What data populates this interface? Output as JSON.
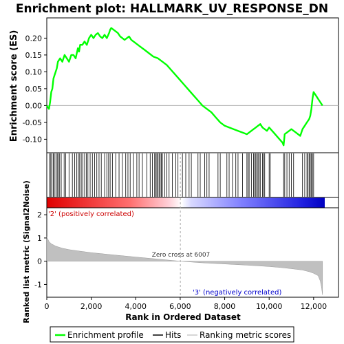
{
  "chart_data": {
    "type": "line",
    "title": "Enrichment plot: HALLMARK_UV_RESPONSE_DN",
    "es_panel": {
      "ylabel": "Enrichment score (ES)",
      "ylim": [
        -0.14,
        0.26
      ],
      "yticks": [
        -0.1,
        -0.05,
        0.0,
        0.05,
        0.1,
        0.15,
        0.2
      ],
      "ytick_labels": [
        "-0.10",
        "-0.05",
        "0.00",
        "0.05",
        "0.10",
        "0.15",
        "0.20"
      ],
      "series": [
        {
          "name": "Enrichment profile",
          "color": "#00ff00",
          "x": [
            0,
            100,
            150,
            200,
            250,
            300,
            350,
            400,
            450,
            500,
            600,
            700,
            800,
            900,
            1000,
            1100,
            1200,
            1300,
            1400,
            1450,
            1500,
            1600,
            1700,
            1800,
            1900,
            2000,
            2100,
            2200,
            2300,
            2400,
            2500,
            2600,
            2700,
            2800,
            2850,
            2900,
            3000,
            3100,
            3200,
            3300,
            3400,
            3500,
            3600,
            3700,
            3800,
            3900,
            4000,
            4200,
            4400,
            4600,
            4800,
            5000,
            5200,
            5400,
            5600,
            5800,
            6000,
            6200,
            6400,
            6600,
            6800,
            7000,
            7200,
            7400,
            7600,
            7800,
            8000,
            8200,
            8400,
            8600,
            8800,
            9000,
            9200,
            9300,
            9400,
            9500,
            9600,
            9700,
            9800,
            9900,
            10000,
            10200,
            10400,
            10600,
            10650,
            10700,
            10800,
            10900,
            11000,
            11100,
            11200,
            11400,
            11500,
            11600,
            11700,
            11800,
            11850,
            11900,
            11950,
            12000,
            12100,
            12200,
            12300,
            12400
          ],
          "y": [
            0.0,
            -0.01,
            0.01,
            0.04,
            0.05,
            0.08,
            0.09,
            0.1,
            0.11,
            0.13,
            0.14,
            0.13,
            0.15,
            0.14,
            0.13,
            0.15,
            0.15,
            0.14,
            0.17,
            0.16,
            0.18,
            0.18,
            0.19,
            0.18,
            0.2,
            0.21,
            0.2,
            0.21,
            0.215,
            0.205,
            0.2,
            0.21,
            0.2,
            0.215,
            0.225,
            0.23,
            0.225,
            0.22,
            0.215,
            0.205,
            0.2,
            0.195,
            0.2,
            0.205,
            0.195,
            0.19,
            0.185,
            0.175,
            0.165,
            0.155,
            0.145,
            0.14,
            0.13,
            0.12,
            0.105,
            0.09,
            0.075,
            0.06,
            0.045,
            0.03,
            0.015,
            0.0,
            -0.01,
            -0.02,
            -0.035,
            -0.05,
            -0.06,
            -0.065,
            -0.07,
            -0.075,
            -0.08,
            -0.085,
            -0.075,
            -0.07,
            -0.065,
            -0.06,
            -0.055,
            -0.065,
            -0.07,
            -0.075,
            -0.065,
            -0.08,
            -0.095,
            -0.11,
            -0.118,
            -0.085,
            -0.08,
            -0.075,
            -0.07,
            -0.075,
            -0.08,
            -0.09,
            -0.07,
            -0.06,
            -0.05,
            -0.04,
            -0.03,
            -0.01,
            0.02,
            0.04,
            0.03,
            0.02,
            0.01,
            0.0
          ]
        }
      ]
    },
    "hits": [
      120,
      180,
      230,
      290,
      340,
      410,
      470,
      520,
      580,
      650,
      780,
      850,
      1000,
      1150,
      1250,
      1350,
      1420,
      1480,
      1550,
      1620,
      1700,
      1780,
      1850,
      1950,
      2050,
      2150,
      2250,
      2350,
      2450,
      2600,
      2700,
      2780,
      2850,
      2950,
      3100,
      3250,
      3400,
      3550,
      3650,
      3750,
      3900,
      4050,
      4150,
      4300,
      4500,
      4650,
      4750,
      4850,
      4900,
      4950,
      5000,
      5050,
      5100,
      5150,
      5200,
      5300,
      5400,
      5500,
      5650,
      5800,
      5900,
      6100,
      6250,
      6400,
      6500,
      6800,
      6900,
      7100,
      7200,
      7300,
      7700,
      7800,
      8100,
      8200,
      8350,
      8500,
      8600,
      8800,
      9000,
      9050,
      9100,
      9200,
      9300,
      9350,
      9400,
      9450,
      9500,
      9550,
      9600,
      9700,
      9750,
      9800,
      10000,
      10050,
      10650,
      10700,
      10800,
      10900,
      11000,
      11100,
      11500,
      11600,
      11700,
      11750,
      11800,
      11850,
      11900,
      11950,
      12000
    ],
    "metric_panel": {
      "ylabel": "Ranked list metric (Signal2Noise)",
      "xlabel": "Rank in Ordered Dataset",
      "xlim": [
        0,
        12500
      ],
      "ylim": [
        -1.55,
        2.3
      ],
      "yticks": [
        -1,
        0,
        1,
        2
      ],
      "ytick_labels": [
        "-1",
        "0",
        "1",
        "2"
      ],
      "xticks": [
        0,
        2000,
        4000,
        6000,
        8000,
        10000,
        12000
      ],
      "xtick_labels": [
        "0",
        "2,000",
        "4,000",
        "6,000",
        "8,000",
        "10,000",
        "12,000"
      ],
      "metric_x": [
        0,
        50,
        100,
        200,
        400,
        700,
        1000,
        1500,
        2000,
        3000,
        4000,
        5000,
        6007,
        7000,
        8000,
        9000,
        10000,
        10500,
        11000,
        11500,
        11800,
        12000,
        12200,
        12300,
        12350,
        12400
      ],
      "metric_y": [
        1.05,
        0.95,
        0.85,
        0.75,
        0.65,
        0.56,
        0.5,
        0.43,
        0.37,
        0.27,
        0.18,
        0.09,
        0.0,
        -0.07,
        -0.12,
        -0.17,
        -0.23,
        -0.27,
        -0.32,
        -0.38,
        -0.45,
        -0.52,
        -0.62,
        -0.85,
        -1.1,
        -1.45
      ],
      "annotations": {
        "zero_cross": "Zero cross at 6007",
        "positive": "'2' (positively correlated)",
        "negative": "'3' (negatively correlated)"
      },
      "zero_cross_rank": 6007
    },
    "legend": {
      "placement": "bottom",
      "items": [
        {
          "label": "Enrichment profile",
          "color": "#00ff00"
        },
        {
          "label": "Hits",
          "color": "#000000"
        },
        {
          "label": "Ranking metric scores",
          "color": "#c8c8c8"
        }
      ]
    },
    "colors": {
      "positive": "#ff0000",
      "negative": "#0000ff",
      "positive_label": "#cc0000",
      "negative_label": "#0000cc",
      "metric_fill": "#c0c0c0"
    }
  }
}
